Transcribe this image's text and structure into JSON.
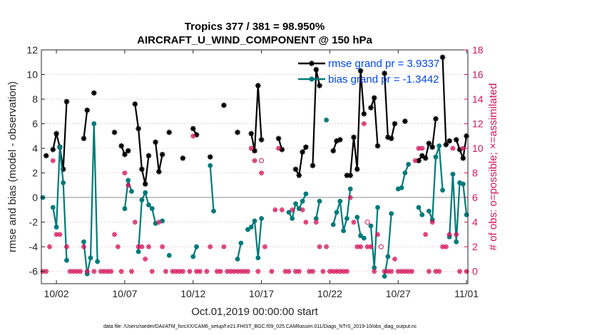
{
  "colors": {
    "rmse": "#000000",
    "bias": "#007a7a",
    "obs": "#d4145a",
    "legend_text": "#0047e6",
    "zero_line": "#b3b3b3",
    "grid": "#e6b3c4"
  },
  "chart_data": {
    "type": "line",
    "title_line1": "Tropics 377 / 381 = 98.950%",
    "title_line2": "AIRCRAFT_U_WIND_COMPONENT @ 150 hPa",
    "xlabel": "Oct.01,2019 00:00:00 start",
    "ylabel": "rmse and bias (model - observation)",
    "ylabel_right": "# of obs: o=possible; ×=assimilated",
    "footnote": "data file: /Users/raeder/DAI/ATM_forcXX/CAM6_setup/f.e21.FHIST_BGC.f09_025.CAM6assim.011/Diags_NTrS_2019-10/obs_diag_output.nc",
    "xlim": [
      0.9,
      32.1
    ],
    "ylim": [
      -7,
      12
    ],
    "ylim_right": [
      -1,
      18
    ],
    "xtick_values": [
      2,
      7,
      12,
      17,
      22,
      27,
      32
    ],
    "xtick_labels": [
      "10/02",
      "10/07",
      "10/12",
      "10/17",
      "10/22",
      "10/27",
      "11/01"
    ],
    "ytick_labels": [
      "12",
      "10",
      "8",
      "6",
      "4",
      "2",
      "0",
      "-2",
      "-4",
      "-6"
    ],
    "ytick_values": [
      12,
      10,
      8,
      6,
      4,
      2,
      0,
      -2,
      -4,
      -6
    ],
    "ytick_right_labels": [
      "18",
      "16",
      "14",
      "12",
      "10",
      "8",
      "6",
      "4",
      "2",
      "0"
    ],
    "ytick_right_values": [
      18,
      16,
      14,
      12,
      10,
      8,
      6,
      4,
      2,
      0
    ],
    "grid": "horizontal dotted, right axis",
    "legend_location": "top-right",
    "series": [
      {
        "name": "rmse grand pr = 3.9337",
        "marker": "star",
        "points": [
          [
            1.25,
            3.4
          ],
          [
            1.75,
            3.9
          ],
          [
            2.0,
            5.2
          ],
          [
            2.25,
            4.1
          ],
          [
            2.5,
            2.3
          ],
          [
            2.75,
            7.8
          ],
          [
            4.0,
            4.8
          ],
          [
            4.25,
            7.1
          ],
          [
            4.75,
            8.5
          ],
          [
            6.25,
            5.3
          ],
          [
            6.75,
            4.2
          ],
          [
            7.0,
            3.5
          ],
          [
            7.25,
            3.8
          ],
          [
            7.75,
            7.6
          ],
          [
            8.0,
            5.6
          ],
          [
            8.25,
            2.3
          ],
          [
            8.5,
            1.1
          ],
          [
            8.75,
            3.4
          ],
          [
            9.25,
            4.5
          ],
          [
            9.5,
            2.1
          ],
          [
            9.75,
            3.5
          ],
          [
            10.25,
            5.3
          ],
          [
            11.25,
            3.2
          ],
          [
            12.0,
            5.6
          ],
          [
            12.25,
            5.1
          ],
          [
            13.25,
            3.3
          ],
          [
            14.25,
            7.5
          ],
          [
            15.25,
            5.3
          ],
          [
            16.25,
            5.2
          ],
          [
            16.5,
            3.8
          ],
          [
            16.75,
            9.1
          ],
          [
            17.0,
            4.7
          ],
          [
            18.25,
            4.8
          ],
          [
            18.5,
            3.9
          ],
          [
            19.5,
            2.3
          ],
          [
            19.75,
            1.8
          ],
          [
            20.0,
            3.7
          ],
          [
            20.25,
            4.1
          ],
          [
            20.75,
            2.6
          ],
          [
            21.0,
            10.4
          ],
          [
            21.25,
            9.1
          ],
          [
            22.25,
            3.8
          ],
          [
            22.5,
            4.6
          ],
          [
            22.75,
            4.7
          ],
          [
            23.25,
            1.8
          ],
          [
            23.5,
            1.8
          ],
          [
            23.75,
            4.9
          ],
          [
            24.0,
            2.3
          ],
          [
            24.25,
            10.3
          ],
          [
            24.5,
            6.8
          ],
          [
            25.0,
            7.3
          ],
          [
            25.25,
            8.1
          ],
          [
            25.5,
            4.2
          ],
          [
            26.0,
            10.1
          ],
          [
            26.25,
            4.9
          ],
          [
            26.5,
            4.8
          ],
          [
            26.75,
            6.0
          ],
          [
            27.5,
            6.2
          ],
          [
            28.5,
            3.0
          ],
          [
            28.75,
            3.4
          ],
          [
            29.0,
            3.2
          ],
          [
            29.25,
            4.4
          ],
          [
            29.5,
            4.1
          ],
          [
            29.75,
            6.4
          ],
          [
            30.25,
            11.4
          ],
          [
            30.5,
            4.3
          ],
          [
            30.75,
            4.6
          ],
          [
            31.25,
            4.7
          ],
          [
            31.5,
            3.9
          ],
          [
            31.75,
            3.2
          ],
          [
            32.0,
            5.0
          ]
        ]
      },
      {
        "name": "bias grand pr = -1.3442",
        "marker": "circle",
        "points": [
          [
            1.0,
            0.0
          ],
          [
            1.75,
            -0.8
          ],
          [
            2.0,
            -2.4
          ],
          [
            2.25,
            4.1
          ],
          [
            2.5,
            1.2
          ],
          [
            2.75,
            -5.1
          ],
          [
            4.0,
            -3.6
          ],
          [
            4.25,
            -6.2
          ],
          [
            4.5,
            -4.9
          ],
          [
            4.75,
            6.0
          ],
          [
            5.0,
            -5.2
          ],
          [
            7.0,
            -0.9
          ],
          [
            7.25,
            1.4
          ],
          [
            7.5,
            0.5
          ],
          [
            8.0,
            -4.4
          ],
          [
            8.25,
            -0.2
          ],
          [
            8.5,
            0.4
          ],
          [
            8.75,
            -0.6
          ],
          [
            9.0,
            -0.9
          ],
          [
            9.25,
            -2.1
          ],
          [
            9.75,
            -1.9
          ],
          [
            10.25,
            -4.7
          ],
          [
            12.0,
            -4.8
          ],
          [
            12.25,
            -4.0
          ],
          [
            13.25,
            2.6
          ],
          [
            13.5,
            -1.1
          ],
          [
            15.25,
            -5.0
          ],
          [
            15.5,
            -3.7
          ],
          [
            16.0,
            -2.6
          ],
          [
            16.25,
            -2.4
          ],
          [
            16.5,
            -1.9
          ],
          [
            16.75,
            -4.9
          ],
          [
            17.0,
            -1.7
          ],
          [
            19.0,
            -1.2
          ],
          [
            19.25,
            -1.7
          ],
          [
            19.5,
            -0.5
          ],
          [
            19.75,
            -0.9
          ],
          [
            20.0,
            -0.3
          ],
          [
            20.25,
            0.3
          ],
          [
            21.0,
            -1.7
          ],
          [
            21.25,
            -0.3
          ],
          [
            21.75,
            6.3
          ],
          [
            22.25,
            -2.2
          ],
          [
            22.5,
            -1.2
          ],
          [
            22.75,
            -0.3
          ],
          [
            23.0,
            -2.7
          ],
          [
            23.25,
            -1.7
          ],
          [
            23.5,
            0.7
          ],
          [
            24.0,
            -1.6
          ],
          [
            24.25,
            -3.1
          ],
          [
            24.5,
            -3.3
          ],
          [
            25.0,
            -2.3
          ],
          [
            25.25,
            -5.7
          ],
          [
            25.5,
            -0.8
          ],
          [
            26.0,
            -6.4
          ],
          [
            26.25,
            -4.8
          ],
          [
            26.5,
            -1.3
          ],
          [
            27.0,
            0.7
          ],
          [
            27.25,
            0.8
          ],
          [
            27.5,
            2.0
          ],
          [
            27.75,
            2.7
          ],
          [
            28.5,
            -0.8
          ],
          [
            28.75,
            -1.4
          ],
          [
            29.25,
            -1.1
          ],
          [
            29.5,
            -1.8
          ],
          [
            29.75,
            3.3
          ],
          [
            30.0,
            4.2
          ],
          [
            30.25,
            0.6
          ],
          [
            30.75,
            -3.2
          ],
          [
            31.0,
            1.9
          ],
          [
            31.25,
            -3.6
          ],
          [
            31.5,
            1.2
          ],
          [
            31.75,
            1.1
          ],
          [
            32.0,
            -1.4
          ]
        ]
      },
      {
        "name": "possible obs",
        "axis": "right",
        "marker": "circle-open",
        "points": [
          [
            17.0,
            9
          ],
          [
            24.75,
            4
          ],
          [
            25.75,
            2
          ]
        ]
      },
      {
        "name": "assimilated obs",
        "axis": "right",
        "marker": "asterisk",
        "points": [
          [
            1.0,
            0
          ],
          [
            1.25,
            0
          ],
          [
            1.5,
            2
          ],
          [
            1.75,
            9
          ],
          [
            2.0,
            3
          ],
          [
            2.25,
            3
          ],
          [
            2.75,
            2
          ],
          [
            3.0,
            0
          ],
          [
            3.25,
            0
          ],
          [
            3.5,
            0
          ],
          [
            3.75,
            0
          ],
          [
            4.0,
            2
          ],
          [
            4.25,
            0
          ],
          [
            4.75,
            0
          ],
          [
            5.25,
            0
          ],
          [
            5.5,
            0
          ],
          [
            5.75,
            0
          ],
          [
            6.0,
            0
          ],
          [
            6.25,
            3
          ],
          [
            6.5,
            2
          ],
          [
            6.75,
            0
          ],
          [
            7.0,
            8
          ],
          [
            7.25,
            7
          ],
          [
            7.5,
            0
          ],
          [
            7.75,
            4
          ],
          [
            8.0,
            2
          ],
          [
            8.25,
            2
          ],
          [
            8.5,
            1
          ],
          [
            8.75,
            2
          ],
          [
            9.0,
            0
          ],
          [
            9.5,
            4
          ],
          [
            9.75,
            2
          ],
          [
            10.0,
            0
          ],
          [
            10.5,
            0
          ],
          [
            10.75,
            0
          ],
          [
            11.0,
            0
          ],
          [
            11.25,
            0
          ],
          [
            11.75,
            0
          ],
          [
            12.0,
            11
          ],
          [
            12.25,
            0
          ],
          [
            12.5,
            0
          ],
          [
            13.0,
            0
          ],
          [
            13.25,
            2
          ],
          [
            13.75,
            0
          ],
          [
            14.0,
            0
          ],
          [
            14.25,
            2
          ],
          [
            14.5,
            0
          ],
          [
            14.75,
            0
          ],
          [
            15.0,
            0
          ],
          [
            15.25,
            0
          ],
          [
            15.5,
            0
          ],
          [
            15.75,
            0
          ],
          [
            16.0,
            0
          ],
          [
            16.25,
            10
          ],
          [
            16.5,
            9
          ],
          [
            16.75,
            0
          ],
          [
            17.0,
            8
          ],
          [
            17.25,
            2
          ],
          [
            17.75,
            0
          ],
          [
            18.0,
            5
          ],
          [
            18.25,
            10
          ],
          [
            18.5,
            5
          ],
          [
            18.75,
            0
          ],
          [
            19.0,
            0
          ],
          [
            19.25,
            5
          ],
          [
            19.5,
            0
          ],
          [
            19.75,
            0
          ],
          [
            20.0,
            5
          ],
          [
            20.25,
            4
          ],
          [
            20.5,
            0
          ],
          [
            20.75,
            0
          ],
          [
            21.0,
            4
          ],
          [
            21.25,
            2
          ],
          [
            21.5,
            0
          ],
          [
            21.75,
            2
          ],
          [
            22.0,
            0
          ],
          [
            22.25,
            0
          ],
          [
            22.5,
            0
          ],
          [
            22.75,
            0
          ],
          [
            23.0,
            0
          ],
          [
            23.25,
            0
          ],
          [
            23.5,
            6
          ],
          [
            23.75,
            4
          ],
          [
            24.0,
            2
          ],
          [
            24.25,
            2
          ],
          [
            24.5,
            12
          ],
          [
            24.75,
            2
          ],
          [
            25.0,
            2
          ],
          [
            25.25,
            0
          ],
          [
            25.5,
            3
          ],
          [
            26.0,
            0
          ],
          [
            26.25,
            0
          ],
          [
            26.5,
            0
          ],
          [
            26.75,
            1
          ],
          [
            27.0,
            0
          ],
          [
            27.25,
            0
          ],
          [
            27.5,
            0
          ],
          [
            27.75,
            0
          ],
          [
            28.0,
            0
          ],
          [
            28.25,
            9
          ],
          [
            28.5,
            10
          ],
          [
            28.75,
            10
          ],
          [
            29.0,
            3
          ],
          [
            29.25,
            0
          ],
          [
            29.5,
            4
          ],
          [
            29.75,
            0
          ],
          [
            30.0,
            0
          ],
          [
            30.25,
            2
          ],
          [
            30.5,
            2
          ],
          [
            30.75,
            3
          ],
          [
            31.0,
            10
          ],
          [
            31.25,
            3
          ],
          [
            31.5,
            0
          ],
          [
            31.75,
            10
          ],
          [
            32.0,
            0
          ]
        ]
      }
    ]
  }
}
